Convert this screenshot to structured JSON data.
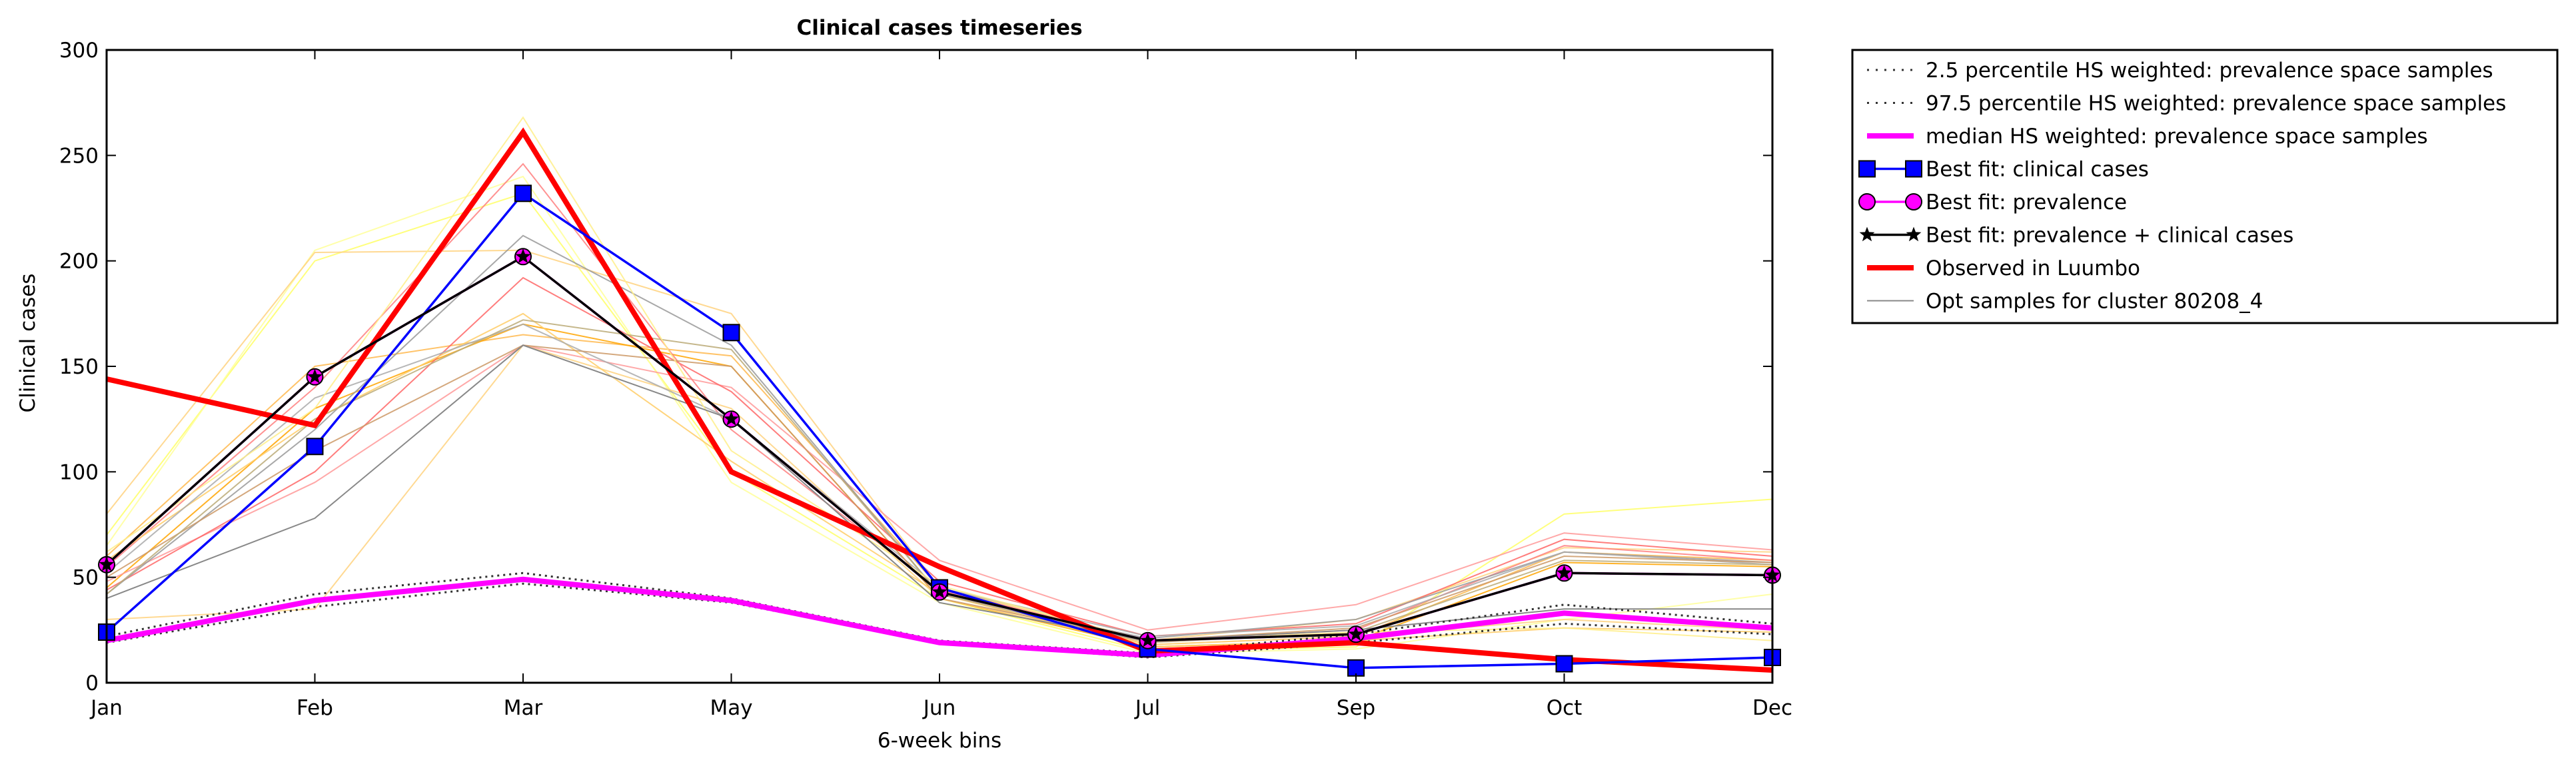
{
  "chart_data": {
    "type": "line",
    "title": "Clinical cases timeseries",
    "xlabel": "6-week bins",
    "ylabel": "Clinical cases",
    "categories": [
      "Jan",
      "Feb",
      "Mar",
      "May",
      "Jun",
      "Jul",
      "Sep",
      "Oct",
      "Dec"
    ],
    "ylim": [
      0,
      300
    ],
    "yticks": [
      0,
      50,
      100,
      150,
      200,
      250,
      300
    ],
    "grid": false,
    "legend_position": "outside right, top",
    "legend": [
      {
        "label": "2.5 percentile HS weighted: prevalence space samples",
        "color": "#555555",
        "style": "dotted"
      },
      {
        "label": "97.5 percentile HS weighted: prevalence space samples",
        "color": "#555555",
        "style": "dotted"
      },
      {
        "label": "median HS weighted: prevalence space samples",
        "color": "#ff00ff",
        "style": "solid-thick"
      },
      {
        "label": "Best fit: clinical cases",
        "color": "#0000ff",
        "style": "line-square"
      },
      {
        "label": "Best fit: prevalence",
        "color": "#ff00ff",
        "style": "line-circle"
      },
      {
        "label": "Best fit: prevalence + clinical cases",
        "color": "#000000",
        "style": "line-star"
      },
      {
        "label": "Observed in Luumbo",
        "color": "#ff0000",
        "style": "solid-thick"
      },
      {
        "label": "Opt samples for cluster 80208_4",
        "color": "#888888",
        "style": "solid-thin"
      }
    ],
    "series": [
      {
        "name": "2.5 percentile HS weighted: prevalence space samples",
        "color": "#555555",
        "style": "dotted",
        "values": [
          19,
          36,
          47,
          38,
          19,
          12,
          19,
          28,
          23
        ]
      },
      {
        "name": "97.5 percentile HS weighted: prevalence space samples",
        "color": "#555555",
        "style": "dotted",
        "values": [
          22,
          42,
          52,
          40,
          20,
          14,
          23,
          37,
          28
        ]
      },
      {
        "name": "median HS weighted: prevalence space samples",
        "color": "#ff00ff",
        "style": "median",
        "values": [
          20,
          39,
          49,
          39,
          19,
          13,
          21,
          33,
          26
        ]
      },
      {
        "name": "Best fit: clinical cases",
        "color": "#0000ff",
        "style": "square",
        "values": [
          24,
          112,
          232,
          166,
          45,
          16,
          7,
          9,
          12
        ]
      },
      {
        "name": "Best fit: prevalence",
        "color": "#ff00ff",
        "style": "circle",
        "values": [
          56,
          145,
          202,
          125,
          43,
          20,
          23,
          52,
          51
        ]
      },
      {
        "name": "Best fit: prevalence + clinical cases",
        "color": "#000000",
        "style": "star",
        "values": [
          56,
          145,
          202,
          125,
          43,
          20,
          23,
          52,
          51
        ]
      },
      {
        "name": "Observed in Luumbo",
        "color": "#ff0000",
        "style": "observed",
        "values": [
          144,
          122,
          261,
          100,
          55,
          15,
          19,
          11,
          6
        ]
      },
      {
        "name": "Opt samples for cluster 80208_4",
        "color": "#888888",
        "style": "sample",
        "values": [
          40,
          78,
          160,
          125,
          38,
          20,
          25,
          35,
          35
        ]
      }
    ],
    "sample_lines": [
      {
        "color": "#ffff66",
        "values": [
          70,
          200,
          232,
          100,
          40,
          15,
          17,
          80,
          87
        ]
      },
      {
        "color": "#ffff99",
        "values": [
          65,
          205,
          240,
          95,
          38,
          14,
          16,
          30,
          42
        ]
      },
      {
        "color": "#ffd27f",
        "values": [
          80,
          204,
          205,
          175,
          45,
          20,
          30,
          64,
          62
        ]
      },
      {
        "color": "#ffb84d",
        "values": [
          60,
          150,
          165,
          155,
          45,
          18,
          22,
          62,
          58
        ]
      },
      {
        "color": "#ffa500",
        "values": [
          45,
          130,
          170,
          150,
          40,
          17,
          20,
          57,
          55
        ]
      },
      {
        "color": "#ff9999",
        "values": [
          48,
          95,
          160,
          140,
          58,
          25,
          37,
          71,
          63
        ]
      },
      {
        "color": "#ff6666",
        "values": [
          44,
          100,
          192,
          138,
          48,
          22,
          28,
          68,
          60
        ]
      },
      {
        "color": "#ff7f7f",
        "values": [
          55,
          140,
          246,
          120,
          44,
          20,
          25,
          65,
          58
        ]
      },
      {
        "color": "#ffd27f",
        "values": [
          30,
          35,
          160,
          130,
          40,
          18,
          22,
          30,
          25
        ]
      },
      {
        "color": "#ffcc66",
        "values": [
          58,
          125,
          175,
          105,
          42,
          17,
          20,
          26,
          24
        ]
      },
      {
        "color": "#999999",
        "values": [
          42,
          120,
          212,
          160,
          42,
          21,
          30,
          62,
          57
        ]
      },
      {
        "color": "#aaaaaa",
        "values": [
          52,
          135,
          170,
          125,
          45,
          22,
          27,
          62,
          56
        ]
      },
      {
        "color": "#cc9966",
        "values": [
          50,
          110,
          160,
          150,
          40,
          20,
          26,
          60,
          57
        ]
      },
      {
        "color": "#bbaa77",
        "values": [
          42,
          125,
          172,
          158,
          42,
          19,
          24,
          58,
          56
        ]
      },
      {
        "color": "#ffee88",
        "values": [
          62,
          130,
          268,
          110,
          46,
          20,
          24,
          26,
          20
        ]
      }
    ]
  }
}
